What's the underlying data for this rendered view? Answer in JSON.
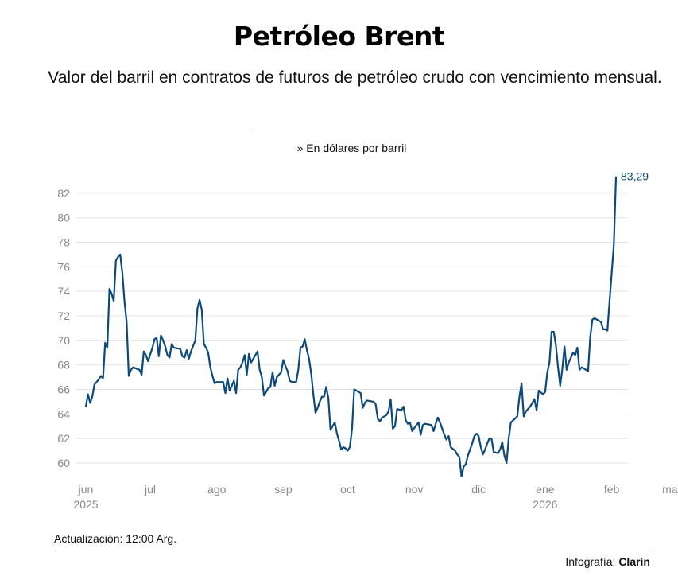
{
  "header": {
    "title": "Petróleo Brent",
    "subtitle": "Valor del barril en contratos de futuros de petróleo crudo con vencimiento mensual.",
    "unit_note": "» En dólares por barril"
  },
  "footer": {
    "update": "Actualización: 12:00 Arg.",
    "credit_prefix": "Infografía: ",
    "credit_brand": "Clarín"
  },
  "colors": {
    "line": "#0d4a7a",
    "grid": "#e3e3e3",
    "tick": "#888888"
  },
  "chart_data": {
    "type": "line",
    "title": "Petróleo Brent",
    "xlabel": "",
    "ylabel": "En dólares por barril",
    "ylim": [
      58.5,
      84
    ],
    "yticks": [
      60,
      62,
      64,
      66,
      68,
      70,
      72,
      74,
      76,
      78,
      80,
      82
    ],
    "x_domain": [
      0,
      276
    ],
    "x_ticks": [
      {
        "x": 0,
        "label": "jun",
        "sub": "2025"
      },
      {
        "x": 30,
        "label": "jul",
        "sub": ""
      },
      {
        "x": 61,
        "label": "ago",
        "sub": ""
      },
      {
        "x": 92,
        "label": "sep",
        "sub": ""
      },
      {
        "x": 122,
        "label": "oct",
        "sub": ""
      },
      {
        "x": 153,
        "label": "nov",
        "sub": ""
      },
      {
        "x": 183,
        "label": "dic",
        "sub": ""
      },
      {
        "x": 214,
        "label": "ene",
        "sub": "2026"
      },
      {
        "x": 245,
        "label": "feb",
        "sub": ""
      },
      {
        "x": 273,
        "label": "mar",
        "sub": ""
      }
    ],
    "last_value_label": "83,29",
    "series": [
      {
        "name": "Brent",
        "points": [
          [
            0,
            64.6
          ],
          [
            1,
            65.6
          ],
          [
            2,
            64.9
          ],
          [
            3,
            65.4
          ],
          [
            4,
            66.4
          ],
          [
            6,
            66.8
          ],
          [
            7,
            67.1
          ],
          [
            8,
            66.9
          ],
          [
            9,
            69.8
          ],
          [
            10,
            69.4
          ],
          [
            11,
            74.2
          ],
          [
            12,
            73.8
          ],
          [
            13,
            73.2
          ],
          [
            14,
            76.5
          ],
          [
            15,
            76.8
          ],
          [
            16,
            77.0
          ],
          [
            17,
            75.5
          ],
          [
            18,
            73.2
          ],
          [
            19,
            71.5
          ],
          [
            20,
            67.1
          ],
          [
            21,
            67.6
          ],
          [
            22,
            67.8
          ],
          [
            25,
            67.6
          ],
          [
            26,
            67.2
          ],
          [
            27,
            69.1
          ],
          [
            28,
            68.8
          ],
          [
            29,
            68.3
          ],
          [
            31,
            69.4
          ],
          [
            32,
            70.1
          ],
          [
            33,
            70.2
          ],
          [
            34,
            68.7
          ],
          [
            35,
            70.4
          ],
          [
            36,
            70.0
          ],
          [
            37,
            69.5
          ],
          [
            38,
            68.8
          ],
          [
            39,
            68.6
          ],
          [
            40,
            69.7
          ],
          [
            41,
            69.4
          ],
          [
            44,
            69.3
          ],
          [
            45,
            68.7
          ],
          [
            46,
            68.6
          ],
          [
            47,
            69.2
          ],
          [
            48,
            68.5
          ],
          [
            49,
            69.1
          ],
          [
            51,
            70.0
          ],
          [
            52,
            72.6
          ],
          [
            53,
            73.3
          ],
          [
            54,
            72.5
          ],
          [
            55,
            69.7
          ],
          [
            56,
            69.4
          ],
          [
            57,
            69.0
          ],
          [
            58,
            67.8
          ],
          [
            59,
            67.1
          ],
          [
            60,
            66.5
          ],
          [
            61,
            66.6
          ],
          [
            64,
            66.6
          ],
          [
            65,
            65.7
          ],
          [
            66,
            66.9
          ],
          [
            67,
            65.9
          ],
          [
            68,
            66.3
          ],
          [
            69,
            66.7
          ],
          [
            70,
            65.7
          ],
          [
            71,
            67.6
          ],
          [
            72,
            67.8
          ],
          [
            73,
            68.2
          ],
          [
            74,
            68.8
          ],
          [
            75,
            67.2
          ],
          [
            76,
            68.9
          ],
          [
            77,
            68.2
          ],
          [
            78,
            68.5
          ],
          [
            79,
            68.8
          ],
          [
            80,
            69.1
          ],
          [
            81,
            67.6
          ],
          [
            82,
            67.0
          ],
          [
            83,
            65.5
          ],
          [
            84,
            65.8
          ],
          [
            85,
            66.1
          ],
          [
            86,
            66.2
          ],
          [
            87,
            67.4
          ],
          [
            88,
            66.3
          ],
          [
            89,
            67.0
          ],
          [
            90,
            67.2
          ],
          [
            91,
            67.4
          ],
          [
            92,
            68.4
          ],
          [
            93,
            67.9
          ],
          [
            94,
            67.5
          ],
          [
            95,
            66.7
          ],
          [
            96,
            66.6
          ],
          [
            98,
            66.6
          ],
          [
            99,
            67.6
          ],
          [
            100,
            69.4
          ],
          [
            101,
            69.5
          ],
          [
            102,
            70.1
          ],
          [
            103,
            69.2
          ],
          [
            104,
            68.5
          ],
          [
            105,
            67.3
          ],
          [
            106,
            65.6
          ],
          [
            107,
            64.1
          ],
          [
            108,
            64.5
          ],
          [
            109,
            65.0
          ],
          [
            110,
            65.4
          ],
          [
            111,
            65.4
          ],
          [
            112,
            66.2
          ],
          [
            113,
            65.3
          ],
          [
            114,
            62.7
          ],
          [
            115,
            63.0
          ],
          [
            116,
            63.3
          ],
          [
            117,
            62.4
          ],
          [
            118,
            61.8
          ],
          [
            119,
            61.1
          ],
          [
            120,
            61.3
          ],
          [
            121,
            61.2
          ],
          [
            122,
            61.0
          ],
          [
            123,
            61.3
          ],
          [
            124,
            62.8
          ],
          [
            125,
            66.0
          ],
          [
            128,
            65.7
          ],
          [
            129,
            64.5
          ],
          [
            130,
            64.9
          ],
          [
            131,
            65.1
          ],
          [
            134,
            65.0
          ],
          [
            135,
            64.8
          ],
          [
            136,
            63.6
          ],
          [
            137,
            63.4
          ],
          [
            138,
            63.7
          ],
          [
            140,
            63.9
          ],
          [
            141,
            64.2
          ],
          [
            142,
            65.2
          ],
          [
            143,
            62.8
          ],
          [
            144,
            63.0
          ],
          [
            145,
            64.4
          ],
          [
            147,
            64.3
          ],
          [
            148,
            64.6
          ],
          [
            149,
            63.5
          ],
          [
            150,
            63.2
          ],
          [
            151,
            63.3
          ],
          [
            152,
            62.6
          ],
          [
            154,
            63.1
          ],
          [
            155,
            63.3
          ],
          [
            156,
            62.3
          ],
          [
            157,
            63.1
          ],
          [
            158,
            63.2
          ],
          [
            161,
            63.1
          ],
          [
            162,
            62.6
          ],
          [
            163,
            63.2
          ],
          [
            164,
            63.7
          ],
          [
            165,
            63.3
          ],
          [
            166,
            62.8
          ],
          [
            167,
            62.3
          ],
          [
            168,
            61.9
          ],
          [
            169,
            62.2
          ],
          [
            170,
            61.3
          ],
          [
            172,
            61.0
          ],
          [
            173,
            60.7
          ],
          [
            174,
            60.5
          ],
          [
            175,
            58.9
          ],
          [
            176,
            59.7
          ],
          [
            177,
            59.9
          ],
          [
            178,
            60.6
          ],
          [
            180,
            61.6
          ],
          [
            181,
            62.2
          ],
          [
            182,
            62.4
          ],
          [
            183,
            62.2
          ],
          [
            184,
            61.3
          ],
          [
            185,
            60.7
          ],
          [
            186,
            61.1
          ],
          [
            187,
            61.6
          ],
          [
            188,
            62.0
          ],
          [
            189,
            62.0
          ],
          [
            190,
            60.9
          ],
          [
            192,
            60.8
          ],
          [
            193,
            61.1
          ],
          [
            194,
            61.7
          ],
          [
            195,
            60.6
          ],
          [
            196,
            60.0
          ],
          [
            197,
            62.0
          ],
          [
            198,
            63.3
          ],
          [
            201,
            63.8
          ],
          [
            202,
            65.4
          ],
          [
            203,
            66.5
          ],
          [
            204,
            63.8
          ],
          [
            205,
            64.2
          ],
          [
            207,
            64.6
          ],
          [
            208,
            64.9
          ],
          [
            209,
            65.2
          ],
          [
            210,
            64.3
          ],
          [
            211,
            65.9
          ],
          [
            213,
            65.6
          ],
          [
            214,
            65.8
          ],
          [
            215,
            67.4
          ],
          [
            216,
            68.2
          ],
          [
            217,
            70.7
          ],
          [
            218,
            70.7
          ],
          [
            219,
            69.6
          ],
          [
            220,
            67.8
          ],
          [
            221,
            66.3
          ],
          [
            222,
            67.7
          ],
          [
            223,
            69.5
          ],
          [
            224,
            67.6
          ],
          [
            225,
            68.2
          ],
          [
            226,
            68.6
          ],
          [
            227,
            69.0
          ],
          [
            228,
            68.8
          ],
          [
            229,
            69.4
          ],
          [
            230,
            67.6
          ],
          [
            231,
            67.8
          ],
          [
            234,
            67.5
          ],
          [
            235,
            70.3
          ],
          [
            236,
            71.7
          ],
          [
            237,
            71.8
          ],
          [
            239,
            71.6
          ],
          [
            240,
            71.5
          ],
          [
            241,
            70.9
          ],
          [
            242,
            70.9
          ],
          [
            243,
            70.8
          ],
          [
            244,
            73.2
          ],
          [
            246,
            77.8
          ],
          [
            247,
            83.3
          ]
        ]
      }
    ]
  }
}
